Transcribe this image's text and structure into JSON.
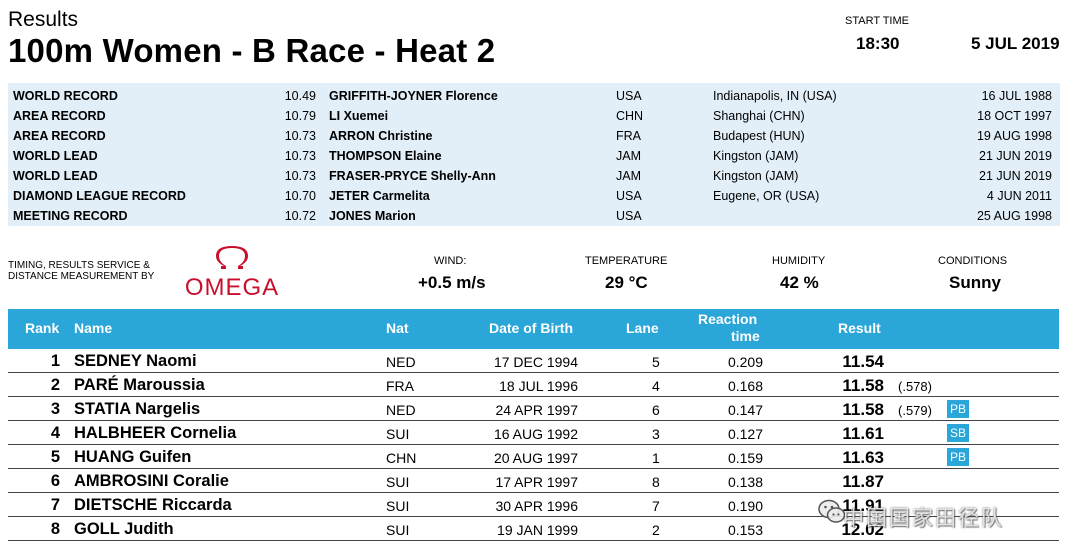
{
  "header": {
    "results_label": "Results",
    "race_title": "100m Women - B Race - Heat 2",
    "start_time_label": "START TIME",
    "start_time": "18:30",
    "date": "5 JUL 2019"
  },
  "records": [
    {
      "label": "WORLD RECORD",
      "time": "10.49",
      "name": "GRIFFITH-JOYNER Florence",
      "nat": "USA",
      "venue": "Indianapolis, IN (USA)",
      "date": "16 JUL 1988"
    },
    {
      "label": "AREA RECORD",
      "time": "10.79",
      "name": "LI Xuemei",
      "nat": "CHN",
      "venue": "Shanghai (CHN)",
      "date": "18 OCT 1997"
    },
    {
      "label": "AREA RECORD",
      "time": "10.73",
      "name": "ARRON Christine",
      "nat": "FRA",
      "venue": "Budapest (HUN)",
      "date": "19 AUG 1998"
    },
    {
      "label": "WORLD LEAD",
      "time": "10.73",
      "name": "THOMPSON Elaine",
      "nat": "JAM",
      "venue": "Kingston (JAM)",
      "date": "21 JUN 2019"
    },
    {
      "label": "WORLD LEAD",
      "time": "10.73",
      "name": "FRASER-PRYCE Shelly-Ann",
      "nat": "JAM",
      "venue": "Kingston (JAM)",
      "date": "21 JUN 2019"
    },
    {
      "label": "DIAMOND LEAGUE RECORD",
      "time": "10.70",
      "name": "JETER Carmelita",
      "nat": "USA",
      "venue": "Eugene, OR (USA)",
      "date": "4 JUN 2011"
    },
    {
      "label": "MEETING RECORD",
      "time": "10.72",
      "name": "JONES Marion",
      "nat": "USA",
      "venue": "",
      "date": "25 AUG 1998"
    }
  ],
  "conditions": {
    "timing_text": [
      "TIMING, RESULTS SERVICE &",
      "DISTANCE MEASUREMENT BY"
    ],
    "logo_text": "OMEGA",
    "logo_icon": "omega-symbol-icon",
    "wind_label": "WIND:",
    "wind_value": "+0.5 m/s",
    "temperature_label": "TEMPERATURE",
    "temperature_value": "29 °C",
    "humidity_label": "HUMIDITY",
    "humidity_value": "42 %",
    "conditions_label": "CONDITIONS",
    "conditions_value": "Sunny"
  },
  "table": {
    "headers": {
      "rank": "Rank",
      "name": "Name",
      "nat": "Nat",
      "dob": "Date of Birth",
      "lane": "Lane",
      "reaction_line1": "Reaction",
      "reaction_line2": "time",
      "result": "Result"
    },
    "rows": [
      {
        "rank": "1",
        "name": "SEDNEY Naomi",
        "nat": "NED",
        "dob": "17 DEC 1994",
        "lane": "5",
        "reaction": "0.209",
        "result": "11.54",
        "extra": "",
        "badge": ""
      },
      {
        "rank": "2",
        "name": "PARÉ Maroussia",
        "nat": "FRA",
        "dob": "18 JUL 1996",
        "lane": "4",
        "reaction": "0.168",
        "result": "11.58",
        "extra": "(.578)",
        "badge": ""
      },
      {
        "rank": "3",
        "name": "STATIA Nargelis",
        "nat": "NED",
        "dob": "24 APR 1997",
        "lane": "6",
        "reaction": "0.147",
        "result": "11.58",
        "extra": "(.579)",
        "badge": "PB"
      },
      {
        "rank": "4",
        "name": "HALBHEER Cornelia",
        "nat": "SUI",
        "dob": "16 AUG 1992",
        "lane": "3",
        "reaction": "0.127",
        "result": "11.61",
        "extra": "",
        "badge": "SB"
      },
      {
        "rank": "5",
        "name": "HUANG Guifen",
        "nat": "CHN",
        "dob": "20 AUG 1997",
        "lane": "1",
        "reaction": "0.159",
        "result": "11.63",
        "extra": "",
        "badge": "PB"
      },
      {
        "rank": "6",
        "name": "AMBROSINI Coralie",
        "nat": "SUI",
        "dob": "17 APR 1997",
        "lane": "8",
        "reaction": "0.138",
        "result": "11.87",
        "extra": "",
        "badge": ""
      },
      {
        "rank": "7",
        "name": "DIETSCHE Riccarda",
        "nat": "SUI",
        "dob": "30 APR 1996",
        "lane": "7",
        "reaction": "0.190",
        "result": "11.91",
        "extra": "",
        "badge": ""
      },
      {
        "rank": "8",
        "name": "GOLL Judith",
        "nat": "SUI",
        "dob": "19 JAN 1999",
        "lane": "2",
        "reaction": "0.153",
        "result": "12.02",
        "extra": "",
        "badge": ""
      }
    ]
  },
  "watermark": {
    "text": "中国国家田径队",
    "icon": "wechat-icon"
  },
  "colors": {
    "header_blue": "#2aa6d9",
    "records_bg": "#e2eff9",
    "omega_red": "#c8102e"
  }
}
